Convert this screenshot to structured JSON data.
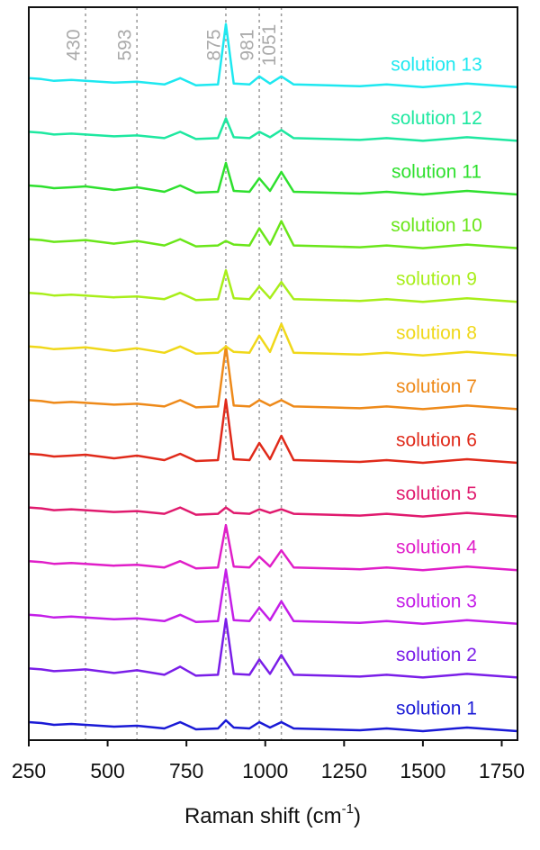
{
  "chart_data": {
    "type": "line",
    "x_label": {
      "text": "Raman shift (cm",
      "superscript": "-1",
      "suffix": ")"
    },
    "x": [
      250,
      290,
      330,
      385,
      430,
      520,
      593,
      680,
      730,
      780,
      850,
      875,
      900,
      950,
      981,
      1015,
      1051,
      1090,
      1200,
      1300,
      1385,
      1500,
      1640,
      1800
    ],
    "xlim": [
      250,
      1800
    ],
    "xticks": [
      250,
      500,
      750,
      1000,
      1250,
      1500,
      1750
    ],
    "reference_lines": [
      430,
      593,
      875,
      981,
      1051
    ],
    "series": [
      {
        "name": "solution 1",
        "color": "#1a1ad6",
        "values": [
          10,
          9,
          7,
          8,
          7,
          5,
          6,
          3,
          10,
          2,
          3,
          12,
          4,
          3,
          10,
          4,
          10,
          3,
          2,
          1,
          3,
          0,
          4,
          0
        ]
      },
      {
        "name": "solution 2",
        "color": "#7a1ee8",
        "values": [
          10,
          9,
          7,
          8,
          9,
          5,
          8,
          3,
          12,
          2,
          3,
          65,
          4,
          3,
          20,
          4,
          25,
          3,
          2,
          1,
          3,
          0,
          4,
          0
        ]
      },
      {
        "name": "solution 3",
        "color": "#c41ee8",
        "values": [
          10,
          9,
          7,
          8,
          7,
          5,
          6,
          3,
          10,
          2,
          3,
          60,
          4,
          3,
          18,
          4,
          25,
          3,
          2,
          1,
          3,
          0,
          4,
          0
        ]
      },
      {
        "name": "solution 4",
        "color": "#e01ec8",
        "values": [
          10,
          9,
          7,
          8,
          7,
          5,
          6,
          3,
          10,
          2,
          3,
          50,
          4,
          3,
          15,
          4,
          22,
          3,
          2,
          1,
          3,
          0,
          4,
          0
        ]
      },
      {
        "name": "solution 5",
        "color": "#e01a6e",
        "values": [
          10,
          9,
          7,
          8,
          7,
          5,
          6,
          3,
          10,
          2,
          3,
          10,
          4,
          3,
          8,
          4,
          8,
          3,
          2,
          1,
          3,
          0,
          4,
          0
        ]
      },
      {
        "name": "solution 6",
        "color": "#e02a1a",
        "values": [
          10,
          9,
          7,
          8,
          9,
          5,
          8,
          3,
          10,
          2,
          3,
          70,
          4,
          3,
          22,
          4,
          30,
          3,
          2,
          1,
          3,
          0,
          4,
          0
        ]
      },
      {
        "name": "solution 7",
        "color": "#ee8a1a",
        "values": [
          10,
          9,
          7,
          8,
          7,
          5,
          6,
          3,
          10,
          2,
          3,
          70,
          4,
          3,
          10,
          4,
          10,
          3,
          2,
          1,
          3,
          0,
          4,
          0
        ]
      },
      {
        "name": "solution 8",
        "color": "#f0d81a",
        "values": [
          10,
          9,
          7,
          8,
          9,
          5,
          8,
          3,
          10,
          2,
          3,
          10,
          4,
          3,
          22,
          4,
          35,
          3,
          2,
          1,
          3,
          0,
          4,
          0
        ]
      },
      {
        "name": "solution 9",
        "color": "#a8ee1a",
        "values": [
          10,
          9,
          7,
          8,
          7,
          5,
          6,
          3,
          10,
          2,
          3,
          35,
          4,
          3,
          17,
          4,
          22,
          3,
          2,
          1,
          3,
          0,
          4,
          0
        ]
      },
      {
        "name": "solution 10",
        "color": "#6ae61a",
        "values": [
          10,
          9,
          7,
          8,
          9,
          5,
          8,
          3,
          10,
          2,
          3,
          8,
          4,
          3,
          22,
          4,
          30,
          3,
          2,
          1,
          3,
          0,
          4,
          0
        ]
      },
      {
        "name": "solution 11",
        "color": "#2ee02e",
        "values": [
          10,
          9,
          7,
          8,
          9,
          5,
          8,
          3,
          10,
          2,
          3,
          35,
          4,
          3,
          18,
          4,
          25,
          3,
          2,
          1,
          3,
          0,
          4,
          0
        ]
      },
      {
        "name": "solution 12",
        "color": "#1ee8a0",
        "values": [
          10,
          9,
          7,
          8,
          7,
          5,
          6,
          3,
          10,
          2,
          3,
          25,
          4,
          3,
          10,
          4,
          12,
          3,
          2,
          1,
          3,
          0,
          4,
          0
        ]
      },
      {
        "name": "solution 13",
        "color": "#1ee8f0",
        "values": [
          10,
          9,
          7,
          8,
          7,
          5,
          6,
          3,
          10,
          2,
          3,
          70,
          4,
          3,
          12,
          4,
          12,
          3,
          2,
          1,
          3,
          0,
          4,
          0
        ]
      }
    ]
  }
}
